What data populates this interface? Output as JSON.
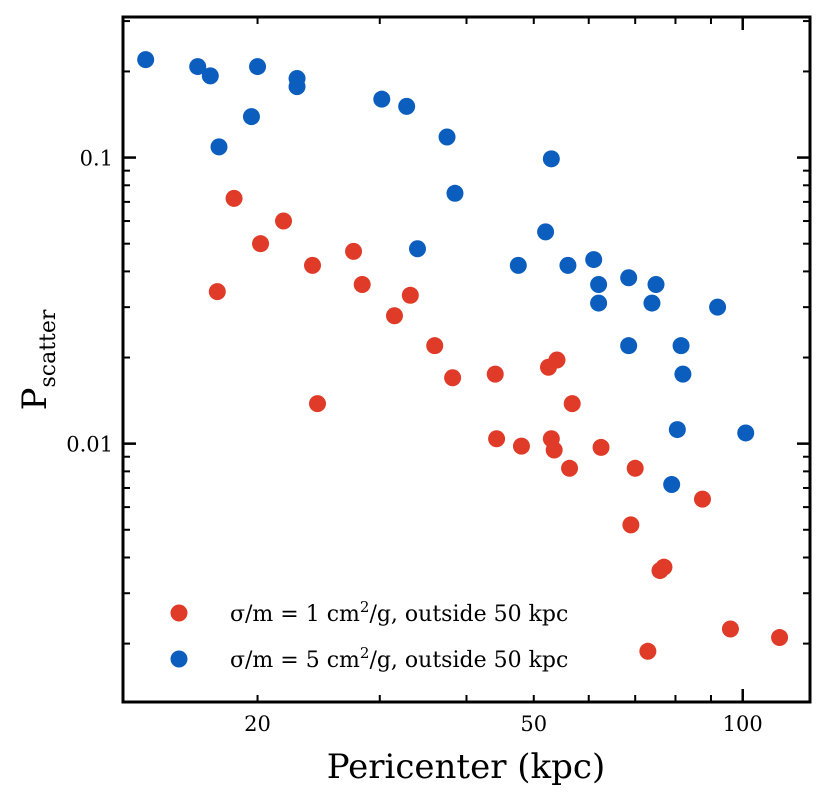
{
  "chart_data": {
    "type": "scatter",
    "xlabel": "Pericenter (kpc)",
    "ylabel_main": "P",
    "ylabel_sub": "scatter",
    "x_scale": "log",
    "y_scale": "log",
    "xlim": [
      12.8,
      125
    ],
    "ylim": [
      0.00125,
      0.31
    ],
    "x_tick_labels": [
      {
        "value": 20,
        "label": "20"
      },
      {
        "value": 50,
        "label": "50"
      },
      {
        "value": 100,
        "label": "100"
      }
    ],
    "y_tick_labels": [
      {
        "value": 0.1,
        "label": "0.1"
      },
      {
        "value": 0.01,
        "label": "0.01"
      }
    ],
    "grid": false,
    "legend_position": "lower-left",
    "series": [
      {
        "name": "σ/m = 1 cm²/g, outside 50 kpc",
        "legend": {
          "pre": "σ/m = 1 cm",
          "sup": "2",
          "post": "/g, outside 50 kpc"
        },
        "color": "#e03a28",
        "points": [
          {
            "x": 17.5,
            "y": 0.034
          },
          {
            "x": 18.5,
            "y": 0.072
          },
          {
            "x": 20.2,
            "y": 0.05
          },
          {
            "x": 21.8,
            "y": 0.06
          },
          {
            "x": 24.0,
            "y": 0.042
          },
          {
            "x": 24.4,
            "y": 0.0138
          },
          {
            "x": 27.5,
            "y": 0.047
          },
          {
            "x": 28.3,
            "y": 0.036
          },
          {
            "x": 31.5,
            "y": 0.028
          },
          {
            "x": 33.2,
            "y": 0.033
          },
          {
            "x": 36.0,
            "y": 0.022
          },
          {
            "x": 38.2,
            "y": 0.017
          },
          {
            "x": 44.0,
            "y": 0.0175
          },
          {
            "x": 44.2,
            "y": 0.0104
          },
          {
            "x": 48.0,
            "y": 0.0098
          },
          {
            "x": 52.5,
            "y": 0.0185
          },
          {
            "x": 53.0,
            "y": 0.0104
          },
          {
            "x": 53.5,
            "y": 0.0095
          },
          {
            "x": 54.0,
            "y": 0.0196
          },
          {
            "x": 56.3,
            "y": 0.0082
          },
          {
            "x": 56.8,
            "y": 0.0138
          },
          {
            "x": 62.5,
            "y": 0.0097
          },
          {
            "x": 69.0,
            "y": 0.0052
          },
          {
            "x": 70.0,
            "y": 0.0082
          },
          {
            "x": 73.0,
            "y": 0.00188
          },
          {
            "x": 76.0,
            "y": 0.0036
          },
          {
            "x": 77.0,
            "y": 0.0037
          },
          {
            "x": 87.5,
            "y": 0.0064
          },
          {
            "x": 96.0,
            "y": 0.00225
          },
          {
            "x": 113.0,
            "y": 0.0021
          }
        ]
      },
      {
        "name": "σ/m = 5 cm²/g, outside 50 kpc",
        "legend": {
          "pre": "σ/m = 5 cm",
          "sup": "2",
          "post": "/g, outside 50 kpc"
        },
        "color": "#0b5ebe",
        "points": [
          {
            "x": 13.8,
            "y": 0.22
          },
          {
            "x": 16.4,
            "y": 0.208
          },
          {
            "x": 17.1,
            "y": 0.193
          },
          {
            "x": 17.6,
            "y": 0.109
          },
          {
            "x": 19.6,
            "y": 0.139
          },
          {
            "x": 20.0,
            "y": 0.208
          },
          {
            "x": 22.8,
            "y": 0.189
          },
          {
            "x": 22.8,
            "y": 0.177
          },
          {
            "x": 30.2,
            "y": 0.16
          },
          {
            "x": 32.8,
            "y": 0.151
          },
          {
            "x": 34.0,
            "y": 0.048
          },
          {
            "x": 37.5,
            "y": 0.118
          },
          {
            "x": 38.5,
            "y": 0.075
          },
          {
            "x": 47.5,
            "y": 0.042
          },
          {
            "x": 52.0,
            "y": 0.055
          },
          {
            "x": 53.0,
            "y": 0.099
          },
          {
            "x": 56.0,
            "y": 0.042
          },
          {
            "x": 61.0,
            "y": 0.044
          },
          {
            "x": 62.0,
            "y": 0.036
          },
          {
            "x": 62.0,
            "y": 0.031
          },
          {
            "x": 68.5,
            "y": 0.038
          },
          {
            "x": 68.5,
            "y": 0.022
          },
          {
            "x": 74.0,
            "y": 0.031
          },
          {
            "x": 75.0,
            "y": 0.036
          },
          {
            "x": 79.0,
            "y": 0.0072
          },
          {
            "x": 80.5,
            "y": 0.0112
          },
          {
            "x": 81.5,
            "y": 0.022
          },
          {
            "x": 82.0,
            "y": 0.0175
          },
          {
            "x": 92.0,
            "y": 0.03
          },
          {
            "x": 101.0,
            "y": 0.0109
          }
        ]
      }
    ]
  }
}
